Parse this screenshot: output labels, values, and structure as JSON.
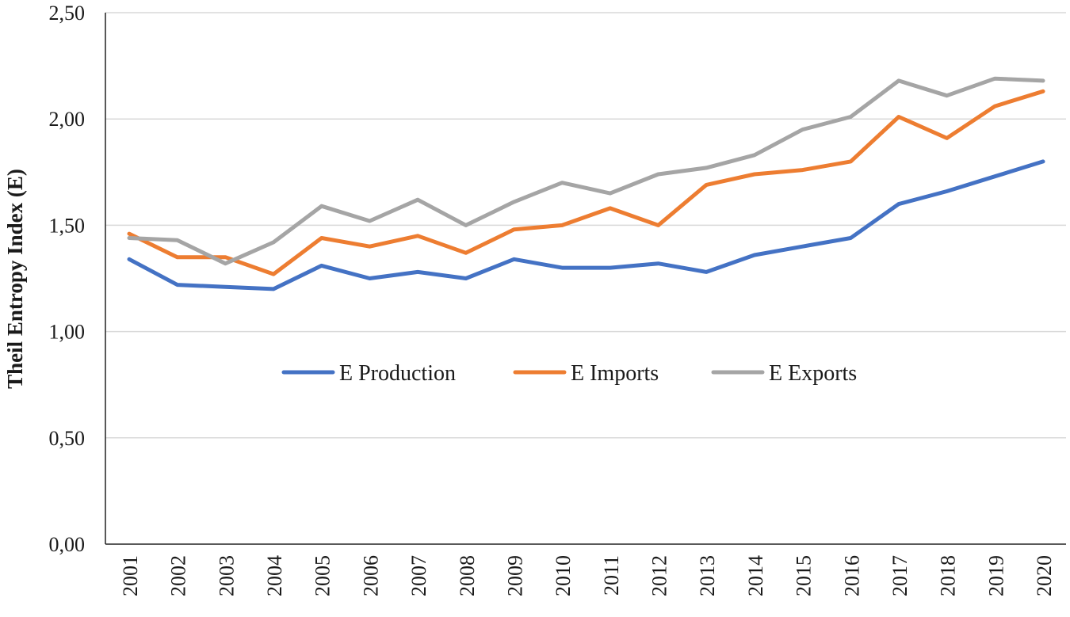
{
  "chart_data": {
    "type": "line",
    "title": "",
    "xlabel": "",
    "ylabel": "Theil Entropy  Index  (E)",
    "ylim": [
      0,
      2.5
    ],
    "y_ticks": [
      "0,00",
      "0,50",
      "1,00",
      "1,50",
      "2,00",
      "2,50"
    ],
    "y_tick_values": [
      0,
      0.5,
      1.0,
      1.5,
      2.0,
      2.5
    ],
    "grid": true,
    "legend_position": "center",
    "categories": [
      "2001",
      "2002",
      "2003",
      "2004",
      "2005",
      "2006",
      "2007",
      "2008",
      "2009",
      "2010",
      "2011",
      "2012",
      "2013",
      "2014",
      "2015",
      "2016",
      "2017",
      "2018",
      "2019",
      "2020"
    ],
    "series": [
      {
        "name": "E Production",
        "color": "#4472C4",
        "values": [
          1.34,
          1.22,
          1.21,
          1.2,
          1.31,
          1.25,
          1.28,
          1.25,
          1.34,
          1.3,
          1.3,
          1.32,
          1.28,
          1.36,
          1.4,
          1.44,
          1.6,
          1.66,
          1.73,
          1.8
        ]
      },
      {
        "name": "E Imports",
        "color": "#ED7D31",
        "values": [
          1.46,
          1.35,
          1.35,
          1.27,
          1.44,
          1.4,
          1.45,
          1.37,
          1.48,
          1.5,
          1.58,
          1.5,
          1.69,
          1.74,
          1.76,
          1.8,
          2.01,
          1.91,
          2.06,
          2.13
        ]
      },
      {
        "name": "E Exports",
        "color": "#A5A5A5",
        "values": [
          1.44,
          1.43,
          1.32,
          1.42,
          1.59,
          1.52,
          1.62,
          1.5,
          1.61,
          1.7,
          1.65,
          1.74,
          1.77,
          1.83,
          1.95,
          2.01,
          2.18,
          2.11,
          2.19,
          2.18
        ]
      }
    ]
  }
}
